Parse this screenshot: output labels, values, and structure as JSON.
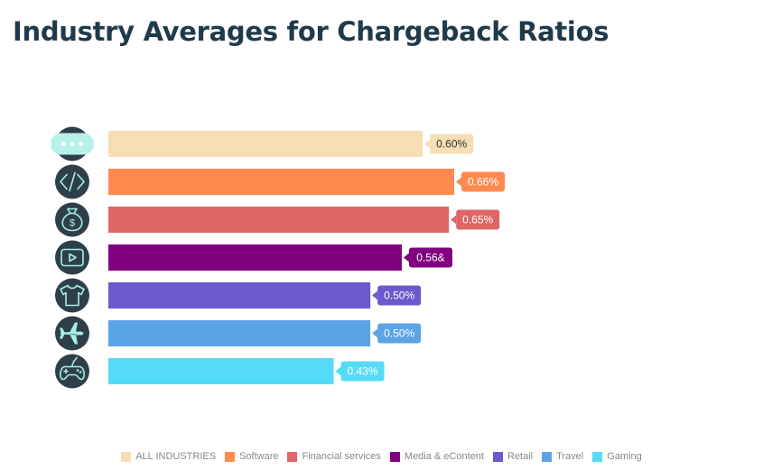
{
  "title": "Industry Averages for Chargeback Ratios",
  "chart_data": {
    "type": "bar",
    "orientation": "horizontal",
    "title": "Industry Averages for Chargeback Ratios",
    "xlabel": "",
    "ylabel": "",
    "xlim": [
      0,
      0.66
    ],
    "grid": false,
    "legend_position": "bottom",
    "categories": [
      "ALL INDUSTRIES",
      "Software",
      "Financial services",
      "Media & eContent",
      "Retail",
      "Travel",
      "Gaming"
    ],
    "values": [
      0.6,
      0.66,
      0.65,
      0.56,
      0.5,
      0.5,
      0.43
    ],
    "labels": [
      "0.60%",
      "0.66%",
      "0.65%",
      "0.56&",
      "0.50%",
      "0.50%",
      "0.43%"
    ],
    "colors": [
      "#f5deb3",
      "#ff8a50",
      "#e06666",
      "#800080",
      "#6a5acd",
      "#5ba4e6",
      "#55dbf5"
    ],
    "label_text_colors": [
      "#333333",
      "#ffffff",
      "#ffffff",
      "#ffffff",
      "#ffffff",
      "#ffffff",
      "#ffffff"
    ],
    "icons": [
      "chat-bubble-icon",
      "code-icon",
      "money-bag-icon",
      "video-play-icon",
      "tshirt-icon",
      "airplane-icon",
      "gamepad-icon"
    ]
  }
}
